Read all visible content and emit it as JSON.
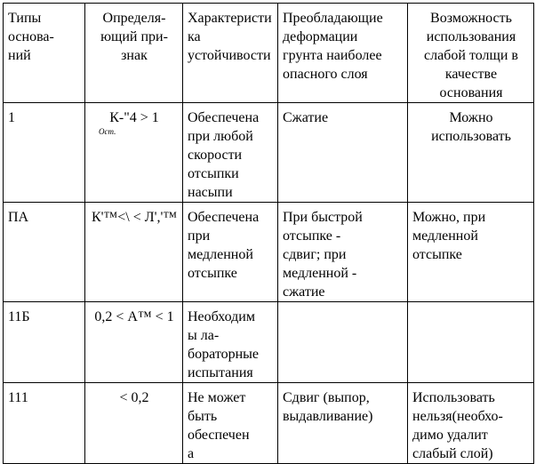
{
  "table": {
    "rows": [
      [
        [
          "Типы",
          "основа-",
          "ний"
        ],
        [
          "Определя-",
          "ющий при-",
          "знак"
        ],
        [
          "Характеристи",
          "ка",
          "устойчивости"
        ],
        [
          "Преобладающие",
          "деформации",
          "грунта наиболее",
          "опасного слоя"
        ],
        [
          "Возможность",
          "использования",
          "слабой толщи в",
          "качестве",
          "основания"
        ]
      ],
      [
        [
          "1"
        ],
        [
          "К-\"4 > 1",
          "Ост."
        ],
        [
          "Обеспечена",
          "при любой",
          "скорости",
          "отсыпки",
          "насыпи"
        ],
        [
          "Сжатие"
        ],
        [
          "Можно",
          "использовать"
        ]
      ],
      [
        [
          "ПА"
        ],
        [
          "К'™<\\ < Л','™"
        ],
        [
          "Обеспечена",
          "при",
          "медленной",
          "отсыпке"
        ],
        [
          "При быстрой",
          "отсыпке -",
          "сдвиг; при",
          "медленной -",
          "сжатие"
        ],
        [
          "Можно, при",
          "медленной",
          "отсыпке"
        ]
      ],
      [
        [
          "11Б"
        ],
        [
          "0,2 < А™ < 1"
        ],
        [
          "Необходим",
          "ы ла-",
          "бораторные",
          "испытания"
        ],
        [],
        []
      ],
      [
        [
          "111"
        ],
        [
          "< 0,2"
        ],
        [
          "Не может",
          "быть",
          "обеспечен",
          "а"
        ],
        [
          "Сдвиг (выпор,",
          "выдавливание)"
        ],
        [
          "Использовать",
          "нельзя(необхо-",
          "димо удалит",
          "слабый слой)"
        ]
      ]
    ]
  }
}
